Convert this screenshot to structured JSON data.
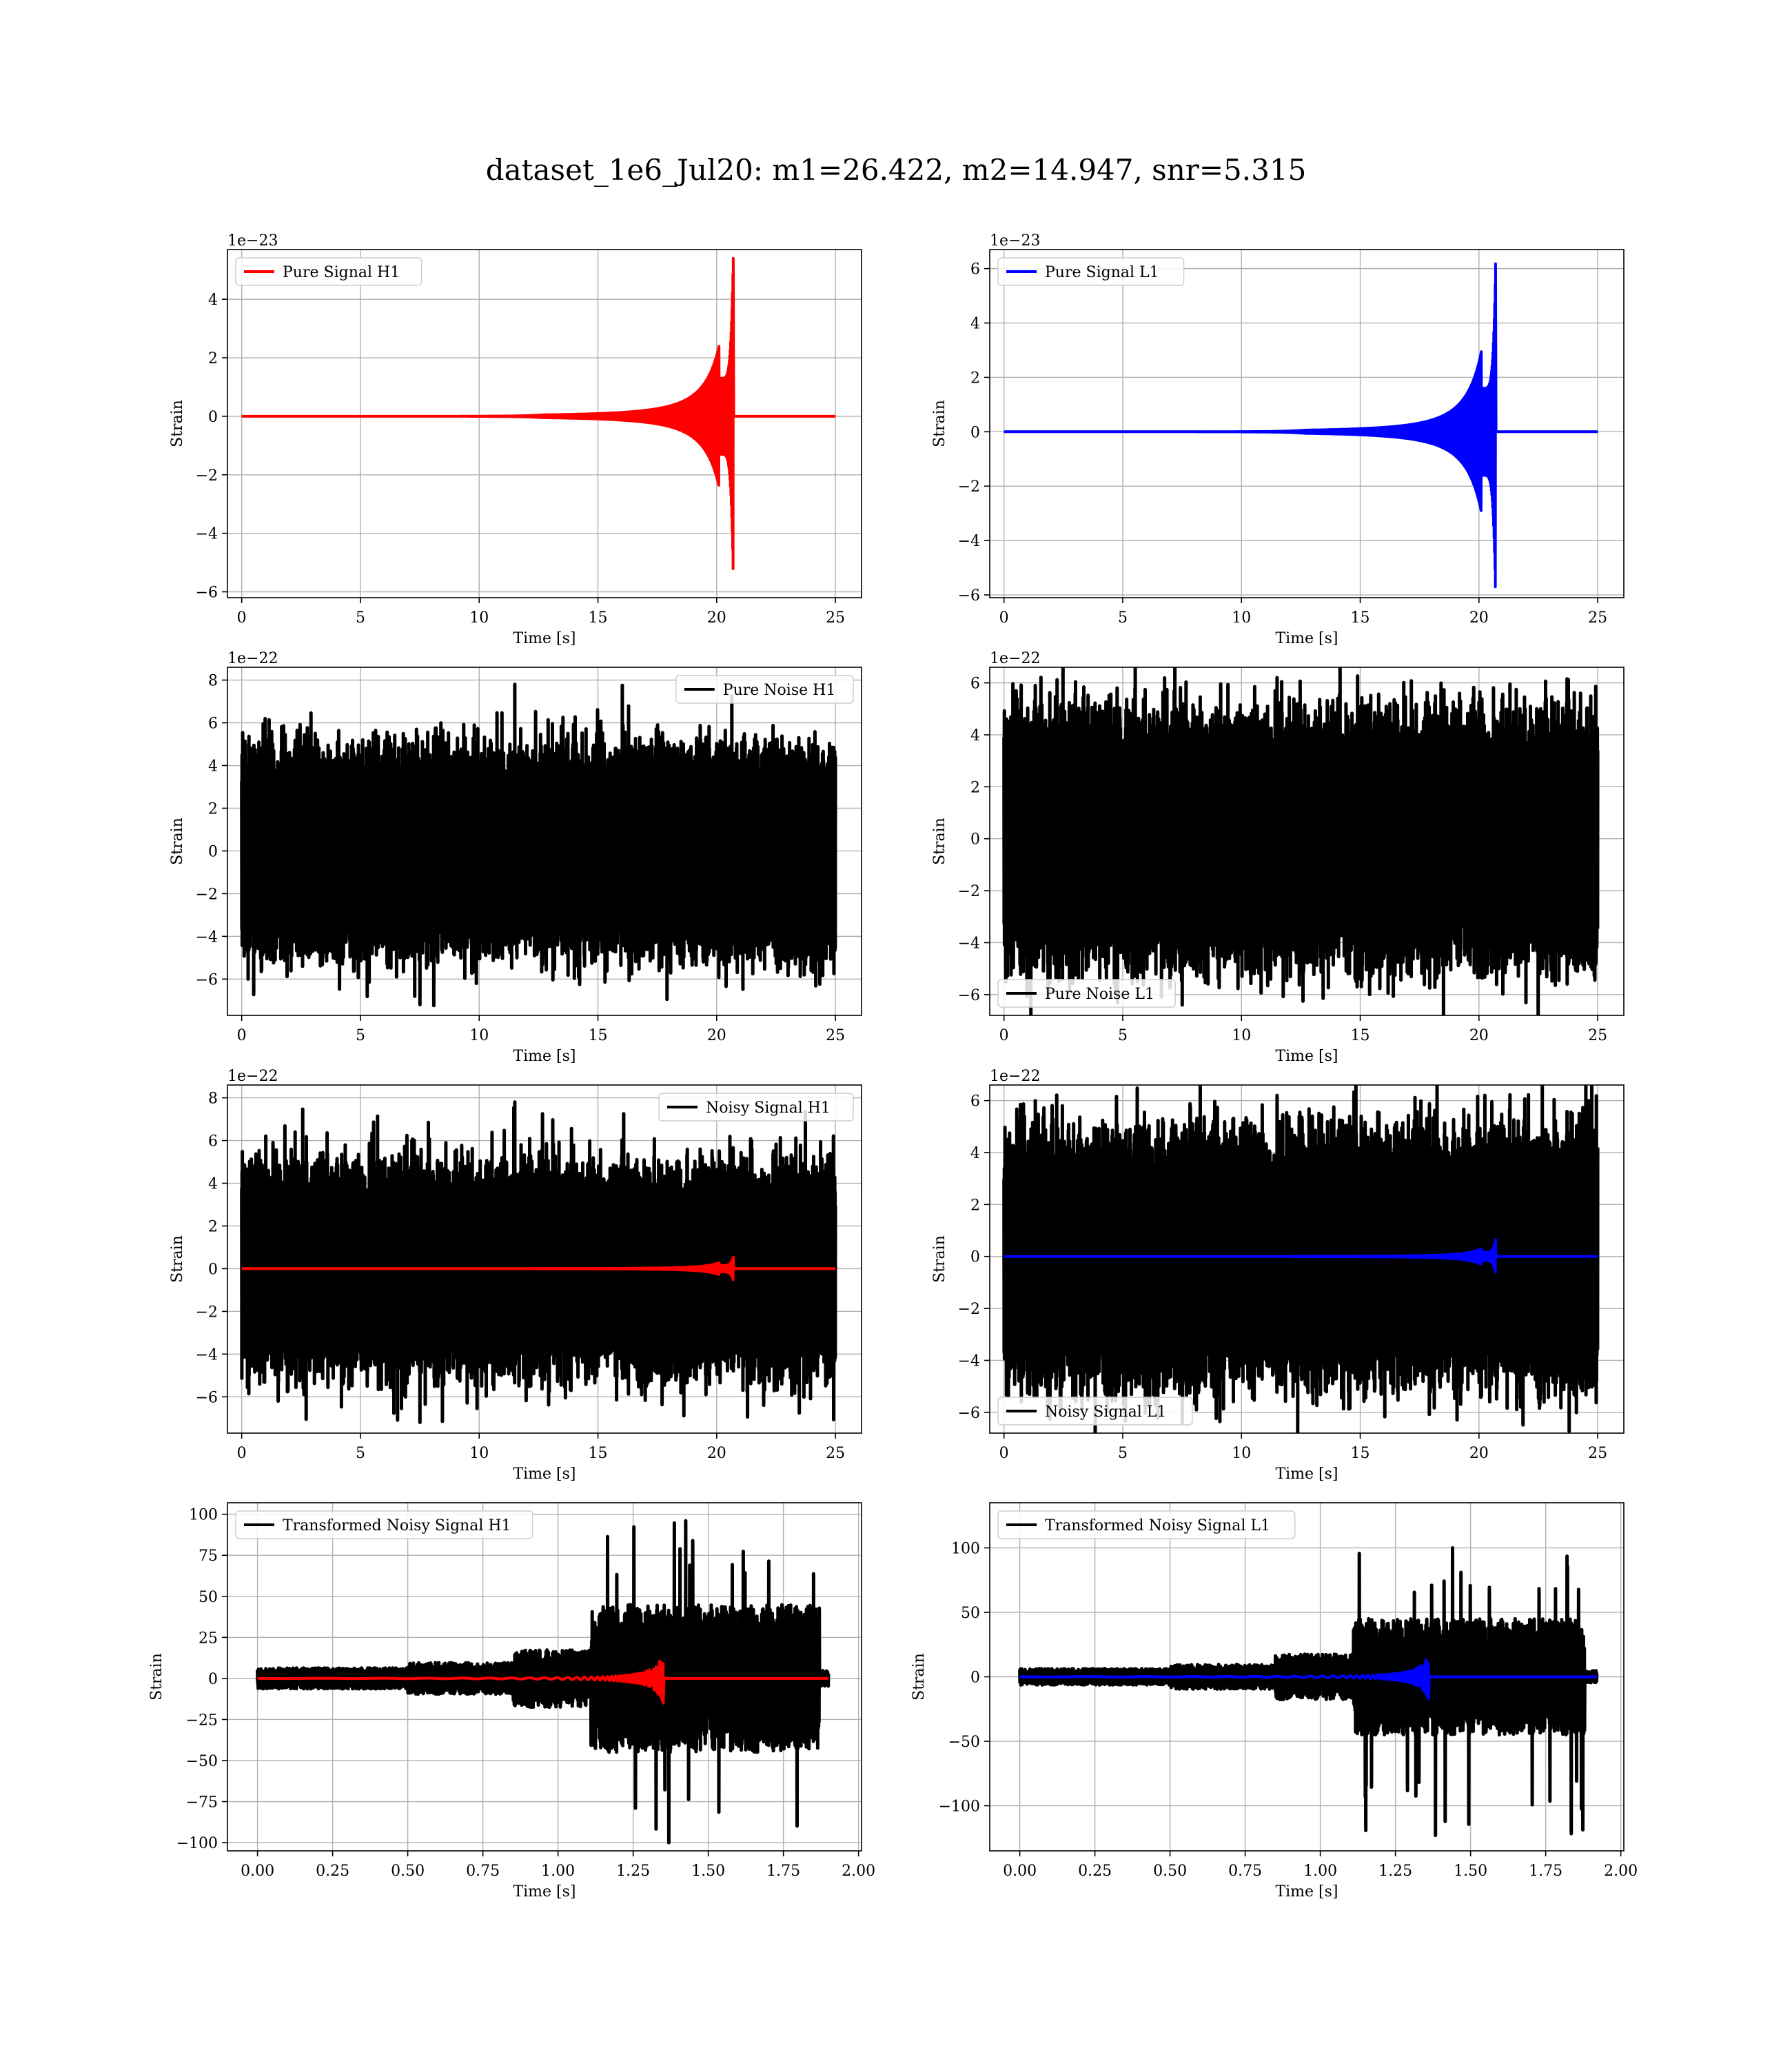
{
  "figure": {
    "title": "dataset_1e6_Jul20: m1=26.422, m2=14.947, snr=5.315"
  },
  "colors": {
    "h1_signal": "#ff0000",
    "l1_signal": "#0000ff",
    "noise": "#000000",
    "grid": "#b0b0b0"
  },
  "chart_data": [
    {
      "id": "pure-signal-h1",
      "type": "line",
      "xlabel": "Time [s]",
      "ylabel": "Strain",
      "offset_text": "1e−23",
      "xlim": [
        -0.6,
        26.1
      ],
      "ylim": [
        -6.2,
        5.7
      ],
      "xticks": [
        0,
        5,
        10,
        15,
        20,
        25
      ],
      "yticks": [
        -6,
        -4,
        -2,
        0,
        2,
        4
      ],
      "xtick_labels": [
        "0",
        "5",
        "10",
        "15",
        "20",
        "25"
      ],
      "ytick_labels": [
        "−6",
        "−4",
        "−2",
        "0",
        "2",
        "4"
      ],
      "legend": "top-left",
      "grid": true,
      "series": [
        {
          "name": "Pure Signal H1",
          "color": "#ff0000",
          "kind": "chirp",
          "t_start": 0,
          "t_end": 25,
          "t_merger": 20.7,
          "envelope": "inspiral",
          "peak_pos": 5.4,
          "peak_neg": -5.6,
          "shoulder": 1.3
        }
      ]
    },
    {
      "id": "pure-signal-l1",
      "type": "line",
      "xlabel": "Time [s]",
      "ylabel": "Strain",
      "offset_text": "1e−23",
      "xlim": [
        -0.6,
        26.1
      ],
      "ylim": [
        -6.1,
        6.7
      ],
      "xticks": [
        0,
        5,
        10,
        15,
        20,
        25
      ],
      "yticks": [
        -6,
        -4,
        -2,
        0,
        2,
        4,
        6
      ],
      "xtick_labels": [
        "0",
        "5",
        "10",
        "15",
        "20",
        "25"
      ],
      "ytick_labels": [
        "−6",
        "−4",
        "−2",
        "0",
        "2",
        "4",
        "6"
      ],
      "legend": "top-left",
      "grid": true,
      "series": [
        {
          "name": "Pure Signal L1",
          "color": "#0000ff",
          "kind": "chirp",
          "t_start": 0,
          "t_end": 25,
          "t_merger": 20.7,
          "envelope": "inspiral",
          "peak_pos": 6.2,
          "peak_neg": -5.7,
          "shoulder": 1.6
        }
      ]
    },
    {
      "id": "pure-noise-h1",
      "type": "line",
      "xlabel": "Time [s]",
      "ylabel": "Strain",
      "offset_text": "1e−22",
      "xlim": [
        -0.6,
        26.1
      ],
      "ylim": [
        -7.7,
        8.6
      ],
      "xticks": [
        0,
        5,
        10,
        15,
        20,
        25
      ],
      "yticks": [
        -6,
        -4,
        -2,
        0,
        2,
        4,
        6,
        8
      ],
      "xtick_labels": [
        "0",
        "5",
        "10",
        "15",
        "20",
        "25"
      ],
      "ytick_labels": [
        "−6",
        "−4",
        "−2",
        "0",
        "2",
        "4",
        "6",
        "8"
      ],
      "legend": "top-right",
      "grid": true,
      "series": [
        {
          "name": "Pure Noise H1",
          "color": "#000000",
          "kind": "noise",
          "t_start": 0,
          "t_end": 25,
          "core": 2.9,
          "spike_max": 7.8,
          "spike_min": -7.2
        }
      ]
    },
    {
      "id": "pure-noise-l1",
      "type": "line",
      "xlabel": "Time [s]",
      "ylabel": "Strain",
      "offset_text": "1e−22",
      "xlim": [
        -0.6,
        26.1
      ],
      "ylim": [
        -6.8,
        6.6
      ],
      "xticks": [
        0,
        5,
        10,
        15,
        20,
        25
      ],
      "yticks": [
        -6,
        -4,
        -2,
        0,
        2,
        4,
        6
      ],
      "xtick_labels": [
        "0",
        "5",
        "10",
        "15",
        "20",
        "25"
      ],
      "ytick_labels": [
        "−6",
        "−4",
        "−2",
        "0",
        "2",
        "4",
        "6"
      ],
      "legend": "bottom-left",
      "grid": true,
      "series": [
        {
          "name": "Pure Noise L1",
          "color": "#000000",
          "kind": "noise",
          "t_start": 0,
          "t_end": 25,
          "core": 2.9,
          "spike_max": 6.2,
          "spike_min": -6.4
        }
      ]
    },
    {
      "id": "noisy-signal-h1",
      "type": "line",
      "xlabel": "Time [s]",
      "ylabel": "Strain",
      "offset_text": "1e−22",
      "xlim": [
        -0.6,
        26.1
      ],
      "ylim": [
        -7.7,
        8.6
      ],
      "xticks": [
        0,
        5,
        10,
        15,
        20,
        25
      ],
      "yticks": [
        -6,
        -4,
        -2,
        0,
        2,
        4,
        6,
        8
      ],
      "xtick_labels": [
        "0",
        "5",
        "10",
        "15",
        "20",
        "25"
      ],
      "ytick_labels": [
        "−6",
        "−4",
        "−2",
        "0",
        "2",
        "4",
        "6",
        "8"
      ],
      "legend": "top-right",
      "grid": true,
      "series": [
        {
          "name": "Noisy Signal H1",
          "color": "#000000",
          "kind": "noise",
          "t_start": 0,
          "t_end": 25,
          "core": 2.9,
          "spike_max": 7.8,
          "spike_min": -7.2
        },
        {
          "name": "",
          "color": "#ff0000",
          "kind": "chirp",
          "t_start": 0,
          "t_end": 25,
          "t_merger": 20.7,
          "envelope": "inspiral",
          "peak_pos": 0.55,
          "peak_neg": -0.55,
          "shoulder": 0.15
        }
      ]
    },
    {
      "id": "noisy-signal-l1",
      "type": "line",
      "xlabel": "Time [s]",
      "ylabel": "Strain",
      "offset_text": "1e−22",
      "xlim": [
        -0.6,
        26.1
      ],
      "ylim": [
        -6.8,
        6.6
      ],
      "xticks": [
        0,
        5,
        10,
        15,
        20,
        25
      ],
      "yticks": [
        -6,
        -4,
        -2,
        0,
        2,
        4,
        6
      ],
      "xtick_labels": [
        "0",
        "5",
        "10",
        "15",
        "20",
        "25"
      ],
      "ytick_labels": [
        "−6",
        "−4",
        "−2",
        "0",
        "2",
        "4",
        "6"
      ],
      "legend": "bottom-left",
      "grid": true,
      "series": [
        {
          "name": "Noisy Signal L1",
          "color": "#000000",
          "kind": "noise",
          "t_start": 0,
          "t_end": 25,
          "core": 2.9,
          "spike_max": 6.2,
          "spike_min": -6.4
        },
        {
          "name": "",
          "color": "#0000ff",
          "kind": "chirp",
          "t_start": 0,
          "t_end": 25,
          "t_merger": 20.7,
          "envelope": "inspiral",
          "peak_pos": 0.65,
          "peak_neg": -0.6,
          "shoulder": 0.16
        }
      ]
    },
    {
      "id": "transformed-noisy-signal-h1",
      "type": "line",
      "xlabel": "Time [s]",
      "ylabel": "Strain",
      "offset_text": "",
      "xlim": [
        -0.1,
        2.01
      ],
      "ylim": [
        -105,
        107
      ],
      "xticks": [
        0,
        0.25,
        0.5,
        0.75,
        1.0,
        1.25,
        1.5,
        1.75,
        2.0
      ],
      "yticks": [
        -100,
        -75,
        -50,
        -25,
        0,
        25,
        50,
        75,
        100
      ],
      "xtick_labels": [
        "0.00",
        "0.25",
        "0.50",
        "0.75",
        "1.00",
        "1.25",
        "1.50",
        "1.75",
        "2.00"
      ],
      "ytick_labels": [
        "−100",
        "−75",
        "−50",
        "−25",
        "0",
        "25",
        "50",
        "75",
        "100"
      ],
      "legend": "top-left",
      "grid": true,
      "series": [
        {
          "name": "Transformed Noisy Signal H1",
          "color": "#000000",
          "kind": "whitened",
          "t_start": 0,
          "t_end": 1.9,
          "t_jump": 1.11,
          "t_cut": 1.87,
          "low_amp": 8,
          "high_amp": 45,
          "spike_max": 96,
          "spike_min": -100
        },
        {
          "name": "",
          "color": "#ff0000",
          "kind": "chirp_fast",
          "t_start": 0,
          "t_end": 1.9,
          "t_merger": 1.35,
          "peak_pos": 15,
          "peak_neg": -15
        }
      ]
    },
    {
      "id": "transformed-noisy-signal-l1",
      "type": "line",
      "xlabel": "Time [s]",
      "ylabel": "Strain",
      "offset_text": "",
      "xlim": [
        -0.1,
        2.01
      ],
      "ylim": [
        -135,
        135
      ],
      "xticks": [
        0,
        0.25,
        0.5,
        0.75,
        1.0,
        1.25,
        1.5,
        1.75,
        2.0
      ],
      "yticks": [
        -100,
        -50,
        0,
        50,
        100
      ],
      "xtick_labels": [
        "0.00",
        "0.25",
        "0.50",
        "0.75",
        "1.00",
        "1.25",
        "1.50",
        "1.75",
        "2.00"
      ],
      "ytick_labels": [
        "−100",
        "−50",
        "0",
        "50",
        "100"
      ],
      "legend": "top-left",
      "grid": true,
      "series": [
        {
          "name": "Transformed Noisy Signal L1",
          "color": "#000000",
          "kind": "whitened",
          "t_start": 0,
          "t_end": 1.92,
          "t_jump": 1.11,
          "t_cut": 1.88,
          "low_amp": 8,
          "high_amp": 45,
          "spike_max": 100,
          "spike_min": -123
        },
        {
          "name": "",
          "color": "#0000ff",
          "kind": "chirp_fast",
          "t_start": 0,
          "t_end": 1.92,
          "t_merger": 1.36,
          "peak_pos": 17,
          "peak_neg": -17
        }
      ]
    }
  ]
}
